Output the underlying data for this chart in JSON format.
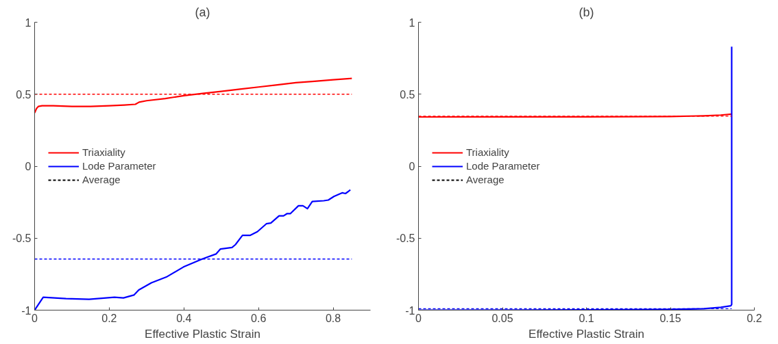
{
  "chart_data": [
    {
      "type": "line",
      "title": "(a)",
      "xlabel": "Effective Plastic Strain",
      "xlim": [
        0,
        0.9
      ],
      "xticks": [
        0,
        0.2,
        0.4,
        0.6,
        0.8
      ],
      "ylim": [
        -1,
        1
      ],
      "yticks": [
        -1,
        -0.5,
        0,
        0.5,
        1
      ],
      "grid": false,
      "legend": "left",
      "line_style": "solid",
      "marker": "none",
      "series": [
        {
          "name": "Triaxiality",
          "color": "#ff0000",
          "x": [
            0,
            0.005,
            0.01,
            0.02,
            0.05,
            0.1,
            0.15,
            0.2,
            0.24,
            0.27,
            0.28,
            0.3,
            0.35,
            0.4,
            0.45,
            0.5,
            0.55,
            0.6,
            0.65,
            0.7,
            0.75,
            0.8,
            0.85
          ],
          "values": [
            0.37,
            0.4,
            0.415,
            0.42,
            0.42,
            0.415,
            0.415,
            0.42,
            0.425,
            0.43,
            0.445,
            0.455,
            0.47,
            0.49,
            0.505,
            0.52,
            0.535,
            0.55,
            0.565,
            0.58,
            0.59,
            0.6,
            0.61
          ]
        },
        {
          "name": "Lode Parameter",
          "color": "#0000ff",
          "x": [
            0,
            0.023,
            0.084,
            0.146,
            0.214,
            0.238,
            0.266,
            0.279,
            0.313,
            0.353,
            0.399,
            0.449,
            0.486,
            0.498,
            0.529,
            0.538,
            0.557,
            0.578,
            0.597,
            0.621,
            0.633,
            0.655,
            0.667,
            0.676,
            0.685,
            0.707,
            0.719,
            0.731,
            0.744,
            0.775,
            0.787,
            0.802,
            0.824,
            0.833,
            0.846
          ],
          "values": [
            -1,
            -0.91,
            -0.92,
            -0.925,
            -0.91,
            -0.915,
            -0.895,
            -0.86,
            -0.81,
            -0.77,
            -0.7,
            -0.645,
            -0.61,
            -0.575,
            -0.565,
            -0.545,
            -0.48,
            -0.48,
            -0.455,
            -0.4,
            -0.395,
            -0.345,
            -0.345,
            -0.33,
            -0.33,
            -0.275,
            -0.275,
            -0.295,
            -0.245,
            -0.24,
            -0.235,
            -0.21,
            -0.185,
            -0.19,
            -0.165
          ]
        }
      ],
      "ref_lines": [
        {
          "axis": "y",
          "value": 0.5,
          "color": "#ff0000",
          "line_style": "dashed"
        },
        {
          "axis": "y",
          "value": -0.645,
          "color": "#0000ff",
          "line_style": "dashed"
        }
      ],
      "annotations": [
        "Average"
      ]
    },
    {
      "type": "line",
      "title": "(b)",
      "xlabel": "Effective Plastic Strain",
      "xlim": [
        0,
        0.2
      ],
      "xticks": [
        0,
        0.05,
        0.1,
        0.15,
        0.2
      ],
      "ylim": [
        -1,
        1
      ],
      "yticks": [
        -1,
        -0.5,
        0,
        0.5,
        1
      ],
      "grid": false,
      "legend": "left",
      "line_style": "solid",
      "marker": "none",
      "series": [
        {
          "name": "Triaxiality",
          "color": "#ff0000",
          "x": [
            0,
            0.1,
            0.15,
            0.17,
            0.18,
            0.1865
          ],
          "values": [
            0.342,
            0.343,
            0.345,
            0.35,
            0.355,
            0.362
          ]
        },
        {
          "name": "Lode Parameter",
          "color": "#0000ff",
          "x": [
            0,
            0.1,
            0.15,
            0.17,
            0.18,
            0.186,
            0.1865,
            0.1865
          ],
          "values": [
            -1,
            -0.998,
            -0.995,
            -0.99,
            -0.98,
            -0.97,
            -0.96,
            0.83
          ]
        }
      ],
      "ref_lines": [
        {
          "axis": "y",
          "value": 0.347,
          "color": "#ff0000",
          "line_style": "dashed"
        },
        {
          "axis": "y",
          "value": -0.99,
          "color": "#0000ff",
          "line_style": "dashed"
        }
      ],
      "annotations": [
        "Average"
      ]
    }
  ]
}
